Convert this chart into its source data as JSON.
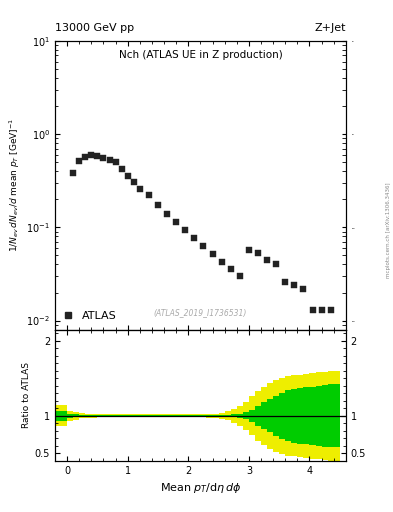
{
  "title_left": "13000 GeV pp",
  "title_right": "Z+Jet",
  "watermark": "(ATLAS_2019_I1736531)",
  "side_text": "mcplots.cern.ch [arXiv:1306.3436]",
  "legend_label": "ATLAS",
  "data_x": [
    0.1,
    0.2,
    0.3,
    0.4,
    0.5,
    0.6,
    0.7,
    0.8,
    0.9,
    1.0,
    1.1,
    1.2,
    1.35,
    1.5,
    1.65,
    1.8,
    1.95,
    2.1,
    2.25,
    2.4,
    2.55,
    2.7,
    2.85,
    3.0,
    3.15,
    3.3,
    3.45,
    3.6,
    3.75,
    3.9,
    4.05,
    4.2,
    4.35
  ],
  "data_y": [
    0.38,
    0.52,
    0.57,
    0.6,
    0.58,
    0.56,
    0.53,
    0.5,
    0.42,
    0.36,
    0.305,
    0.26,
    0.22,
    0.175,
    0.14,
    0.115,
    0.094,
    0.077,
    0.063,
    0.052,
    0.043,
    0.036,
    0.03,
    0.057,
    0.053,
    0.045,
    0.04,
    0.026,
    0.024,
    0.022,
    0.013,
    0.013,
    0.013
  ],
  "xlim": [
    -0.2,
    4.6
  ],
  "ylim_main": [
    0.008,
    10
  ],
  "ylim_ratio": [
    0.4,
    2.15
  ],
  "color_marker": "#222222",
  "color_green": "#00cc00",
  "color_yellow": "#eeee00",
  "marker_size": 4,
  "ratio_x_edges": [
    -0.2,
    0.0,
    0.1,
    0.2,
    0.3,
    0.4,
    0.5,
    0.6,
    0.7,
    0.8,
    0.9,
    1.0,
    1.1,
    1.2,
    1.3,
    1.4,
    1.5,
    1.6,
    1.7,
    1.8,
    1.9,
    2.0,
    2.1,
    2.2,
    2.3,
    2.4,
    2.5,
    2.6,
    2.7,
    2.8,
    2.9,
    3.0,
    3.1,
    3.2,
    3.3,
    3.4,
    3.5,
    3.6,
    3.7,
    3.8,
    3.9,
    4.0,
    4.1,
    4.2,
    4.3,
    4.5
  ],
  "ratio_green_lo": [
    0.93,
    0.97,
    0.98,
    0.985,
    0.988,
    0.989,
    0.99,
    0.99,
    0.99,
    0.99,
    0.99,
    0.99,
    0.99,
    0.99,
    0.99,
    0.99,
    0.99,
    0.99,
    0.99,
    0.99,
    0.99,
    0.99,
    0.99,
    0.99,
    0.99,
    0.99,
    0.988,
    0.985,
    0.98,
    0.97,
    0.955,
    0.92,
    0.87,
    0.82,
    0.78,
    0.73,
    0.69,
    0.66,
    0.64,
    0.63,
    0.62,
    0.61,
    0.6,
    0.59,
    0.58
  ],
  "ratio_green_hi": [
    1.07,
    1.03,
    1.02,
    1.015,
    1.012,
    1.011,
    1.01,
    1.01,
    1.01,
    1.01,
    1.01,
    1.01,
    1.01,
    1.01,
    1.01,
    1.01,
    1.01,
    1.01,
    1.01,
    1.01,
    1.01,
    1.01,
    1.01,
    1.01,
    1.01,
    1.01,
    1.012,
    1.015,
    1.02,
    1.03,
    1.045,
    1.08,
    1.13,
    1.18,
    1.22,
    1.27,
    1.31,
    1.34,
    1.36,
    1.37,
    1.38,
    1.39,
    1.4,
    1.41,
    1.42
  ],
  "ratio_yellow_lo": [
    0.86,
    0.93,
    0.95,
    0.965,
    0.972,
    0.975,
    0.978,
    0.979,
    0.98,
    0.98,
    0.98,
    0.98,
    0.98,
    0.98,
    0.98,
    0.98,
    0.98,
    0.98,
    0.98,
    0.98,
    0.98,
    0.98,
    0.98,
    0.98,
    0.975,
    0.97,
    0.96,
    0.94,
    0.91,
    0.87,
    0.81,
    0.74,
    0.67,
    0.61,
    0.56,
    0.52,
    0.49,
    0.47,
    0.46,
    0.45,
    0.44,
    0.43,
    0.42,
    0.41,
    0.4
  ],
  "ratio_yellow_hi": [
    1.14,
    1.07,
    1.05,
    1.035,
    1.028,
    1.025,
    1.022,
    1.021,
    1.02,
    1.02,
    1.02,
    1.02,
    1.02,
    1.02,
    1.02,
    1.02,
    1.02,
    1.02,
    1.02,
    1.02,
    1.02,
    1.02,
    1.02,
    1.02,
    1.025,
    1.03,
    1.04,
    1.06,
    1.09,
    1.13,
    1.19,
    1.26,
    1.33,
    1.39,
    1.44,
    1.48,
    1.51,
    1.53,
    1.54,
    1.55,
    1.56,
    1.57,
    1.58,
    1.59,
    1.6
  ]
}
